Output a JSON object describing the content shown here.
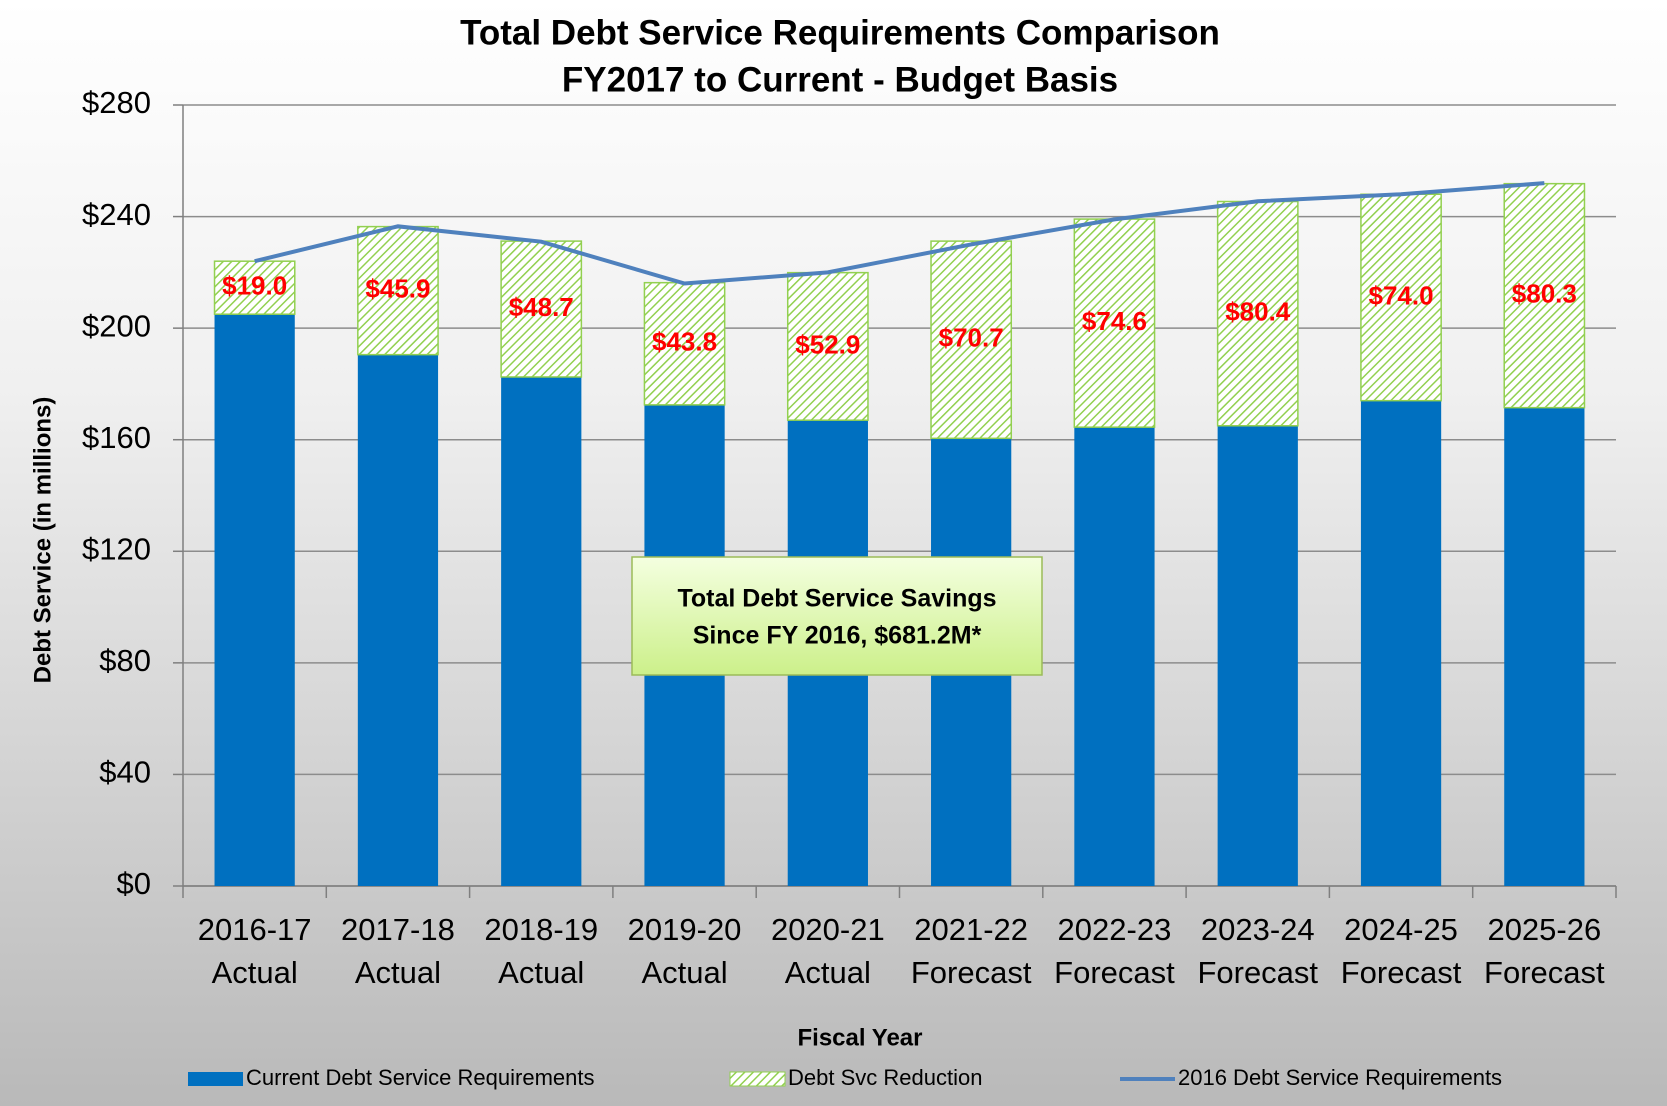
{
  "chart_data": {
    "type": "stacked_bar_line",
    "title": "Total Debt Service Requirements Comparison",
    "subtitle": "FY2017 to Current - Budget Basis",
    "y_label": "Debt Service (in millions)",
    "x_label": "Fiscal Year",
    "annotation": [
      "Total Debt Service Savings",
      "Since FY 2016, $681.2M*"
    ],
    "categories": [
      [
        "2016-17",
        "Actual"
      ],
      [
        "2017-18",
        "Actual"
      ],
      [
        "2018-19",
        "Actual"
      ],
      [
        "2019-20",
        "Actual"
      ],
      [
        "2020-21",
        "Actual"
      ],
      [
        "2021-22",
        "Forecast"
      ],
      [
        "2022-23",
        "Forecast"
      ],
      [
        "2023-24",
        "Forecast"
      ],
      [
        "2024-25",
        "Forecast"
      ],
      [
        "2025-26",
        "Forecast"
      ]
    ],
    "series": [
      {
        "name": "Current Debt Service Requirements",
        "color": "#0070c0",
        "kind": "bar",
        "values": [
          205,
          190.5,
          182.5,
          172.5,
          167,
          160.5,
          164.5,
          165,
          174,
          171.5
        ]
      },
      {
        "name": "Debt Svc Reduction",
        "color": "#92d050",
        "kind": "bar",
        "values": [
          19.0,
          45.9,
          48.7,
          43.8,
          52.9,
          70.7,
          74.6,
          80.4,
          74.0,
          80.3
        ],
        "value_labels": [
          "$19.0",
          "$45.9",
          "$48.7",
          "$43.8",
          "$52.9",
          "$70.7",
          "$74.6",
          "$80.4",
          "$74.0",
          "$80.3"
        ]
      },
      {
        "name": "2016 Debt Service Requirements",
        "color": "#4f81bd",
        "kind": "line",
        "values": [
          224,
          236.5,
          231,
          216,
          220,
          230,
          239,
          245.5,
          248,
          252
        ]
      }
    ],
    "ylim": [
      0,
      280
    ],
    "yticks": [
      {
        "value": 0,
        "label": "$0"
      },
      {
        "value": 40,
        "label": "$40"
      },
      {
        "value": 80,
        "label": "$80"
      },
      {
        "value": 120,
        "label": "$120"
      },
      {
        "value": 160,
        "label": "$160"
      },
      {
        "value": 200,
        "label": "$200"
      },
      {
        "value": 240,
        "label": "$240"
      },
      {
        "value": 280,
        "label": "$280"
      }
    ],
    "grid": true
  }
}
